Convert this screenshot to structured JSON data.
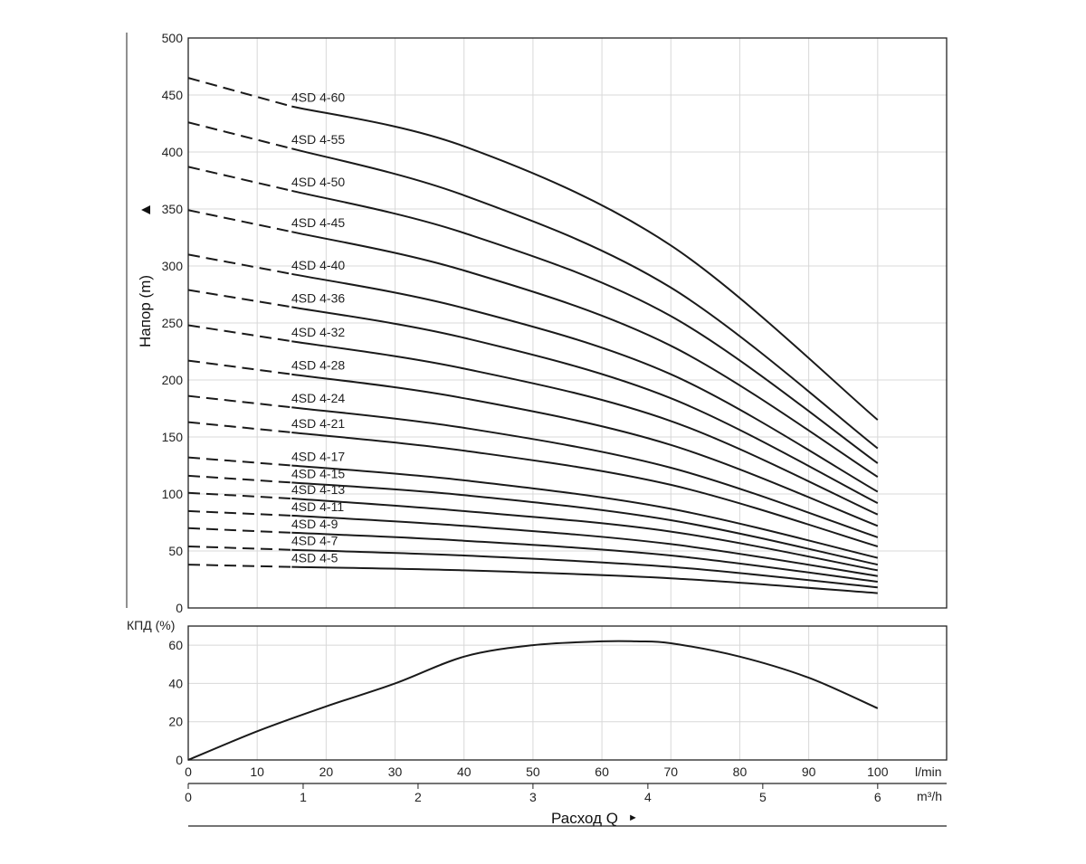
{
  "chart_data": [
    {
      "type": "line",
      "name": "head",
      "ylabel": "Напор (m)",
      "ylabel_marker": "▲",
      "xlim": [
        0,
        110
      ],
      "ylim": [
        0,
        500
      ],
      "yticks": [
        "0",
        "50",
        "100",
        "150",
        "200",
        "250",
        "300",
        "350",
        "400",
        "450",
        "500"
      ],
      "grid": true,
      "note": "dashed segment from 0 to 15 l/min, solid from 15 to 100 l/min",
      "x": [
        0,
        15,
        40,
        70,
        100
      ],
      "series": [
        {
          "name": "4SD 4-5",
          "values": [
            38,
            36,
            33,
            26,
            13
          ]
        },
        {
          "name": "4SD 4-7",
          "values": [
            54,
            51,
            46,
            36,
            18
          ]
        },
        {
          "name": "4SD 4-9",
          "values": [
            70,
            66,
            59,
            46,
            23
          ]
        },
        {
          "name": "4SD 4-11",
          "values": [
            85,
            81,
            72,
            56,
            28
          ]
        },
        {
          "name": "4SD 4-13",
          "values": [
            101,
            96,
            85,
            67,
            33
          ]
        },
        {
          "name": "4SD 4-15",
          "values": [
            116,
            110,
            99,
            77,
            38
          ]
        },
        {
          "name": "4SD 4-17",
          "values": [
            132,
            125,
            112,
            87,
            44
          ]
        },
        {
          "name": "4SD 4-21",
          "values": [
            163,
            154,
            138,
            108,
            54
          ]
        },
        {
          "name": "4SD 4-24",
          "values": [
            186,
            176,
            158,
            123,
            62
          ]
        },
        {
          "name": "4SD 4-28",
          "values": [
            217,
            205,
            184,
            143,
            72
          ]
        },
        {
          "name": "4SD 4-32",
          "values": [
            248,
            234,
            210,
            164,
            82
          ]
        },
        {
          "name": "4SD 4-36",
          "values": [
            279,
            264,
            237,
            184,
            92
          ]
        },
        {
          "name": "4SD 4-40",
          "values": [
            310,
            293,
            263,
            205,
            102
          ]
        },
        {
          "name": "4SD 4-45",
          "values": [
            349,
            330,
            296,
            230,
            115
          ]
        },
        {
          "name": "4SD 4-50",
          "values": [
            387,
            366,
            329,
            256,
            127
          ]
        },
        {
          "name": "4SD 4-55",
          "values": [
            426,
            403,
            362,
            281,
            140
          ]
        },
        {
          "name": "4SD 4-60",
          "values": [
            465,
            440,
            405,
            318,
            165
          ]
        }
      ]
    },
    {
      "type": "line",
      "name": "efficiency",
      "ylabel": "КПД (%)",
      "xlim": [
        0,
        110
      ],
      "ylim": [
        0,
        70
      ],
      "yticks": [
        "0",
        "20",
        "40",
        "60"
      ],
      "grid": true,
      "x": [
        0,
        10,
        20,
        30,
        40,
        50,
        60,
        65,
        70,
        80,
        90,
        100
      ],
      "series": [
        {
          "name": "",
          "values": [
            0,
            15,
            28,
            40,
            54,
            60,
            62,
            62,
            61,
            54,
            43,
            27
          ]
        }
      ]
    }
  ],
  "x_axes": {
    "lmin": {
      "unit": "l/min",
      "ticks": [
        "0",
        "10",
        "20",
        "30",
        "40",
        "50",
        "60",
        "70",
        "80",
        "90",
        "100"
      ]
    },
    "m3h": {
      "unit": "m³/h",
      "ticks": [
        "0",
        "1",
        "2",
        "3",
        "4",
        "5",
        "6"
      ]
    },
    "title": "Расход Q",
    "title_marker": "►"
  }
}
